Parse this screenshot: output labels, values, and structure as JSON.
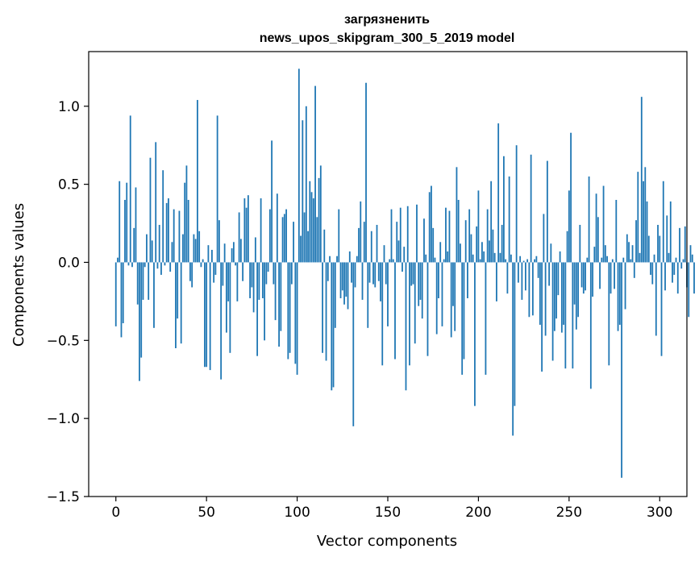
{
  "chart_data": {
    "type": "bar",
    "title": "загрязненить",
    "subtitle": "news_upos_skipgram_300_5_2019 model",
    "xlabel": "Vector components",
    "ylabel": "Components values",
    "xlim": [
      -15,
      315
    ],
    "ylim": [
      -1.5,
      1.35
    ],
    "xticks": [
      0,
      50,
      100,
      150,
      200,
      250,
      300
    ],
    "yticks": [
      1.0,
      0.5,
      0.0,
      -0.5,
      -1.0,
      -1.5
    ],
    "ytick_labels": [
      "1.0",
      "0.5",
      "0.0",
      "−0.5",
      "−1.0",
      "−1.5"
    ],
    "bar_color": "#1f77b4",
    "grid": false,
    "values": [
      -0.41,
      0.03,
      0.52,
      -0.48,
      -0.39,
      0.4,
      0.51,
      -0.02,
      0.94,
      -0.03,
      0.22,
      0.48,
      -0.27,
      -0.76,
      -0.61,
      -0.24,
      -0.03,
      0.18,
      -0.24,
      0.67,
      0.14,
      -0.42,
      0.77,
      -0.04,
      0.24,
      -0.08,
      0.59,
      -0.02,
      0.38,
      0.41,
      -0.06,
      0.13,
      0.34,
      -0.55,
      -0.36,
      0.33,
      -0.52,
      0.18,
      0.51,
      0.62,
      0.4,
      -0.12,
      -0.16,
      0.18,
      0.15,
      1.04,
      0.2,
      -0.03,
      0.02,
      -0.67,
      -0.67,
      0.11,
      -0.69,
      0.08,
      -0.13,
      -0.08,
      0.94,
      0.27,
      -0.75,
      -0.15,
      0.12,
      -0.45,
      -0.25,
      -0.58,
      0.09,
      0.13,
      -0.02,
      -0.25,
      0.32,
      0.15,
      -0.12,
      0.41,
      0.35,
      0.43,
      -0.23,
      -0.16,
      -0.32,
      0.16,
      -0.6,
      -0.24,
      0.41,
      -0.23,
      -0.5,
      -0.14,
      -0.06,
      0.34,
      0.78,
      -0.14,
      -0.37,
      0.44,
      -0.54,
      -0.44,
      0.29,
      0.31,
      0.34,
      -0.62,
      -0.58,
      -0.14,
      0.26,
      -0.65,
      -0.72,
      1.24,
      0.17,
      0.91,
      0.32,
      1.0,
      0.2,
      0.52,
      0.45,
      0.41,
      1.13,
      0.29,
      0.54,
      0.62,
      -0.58,
      0.21,
      -0.63,
      -0.12,
      0.04,
      -0.82,
      -0.8,
      -0.42,
      0.04,
      0.34,
      -0.23,
      -0.18,
      -0.27,
      -0.22,
      -0.3,
      0.07,
      -0.13,
      -1.05,
      -0.16,
      0.04,
      0.22,
      0.39,
      -0.24,
      0.26,
      1.15,
      -0.42,
      -0.13,
      0.2,
      -0.14,
      -0.16,
      0.24,
      -0.12,
      -0.25,
      -0.66,
      0.11,
      -0.14,
      -0.41,
      0.02,
      0.34,
      0.02,
      -0.62,
      0.26,
      0.14,
      0.35,
      -0.06,
      0.1,
      -0.82,
      0.36,
      -0.66,
      -0.15,
      -0.14,
      -0.52,
      0.37,
      -0.28,
      -0.24,
      -0.36,
      0.28,
      0.05,
      -0.6,
      0.45,
      0.49,
      0.22,
      0.03,
      -0.46,
      -0.23,
      0.13,
      -0.41,
      0.02,
      0.35,
      0.07,
      0.33,
      -0.48,
      -0.28,
      -0.44,
      0.61,
      0.4,
      0.12,
      -0.72,
      -0.62,
      0.27,
      -0.23,
      0.34,
      0.18,
      0.05,
      -0.92,
      0.23,
      0.46,
      0.02,
      0.13,
      0.07,
      -0.72,
      0.34,
      0.14,
      0.52,
      0.21,
      0.06,
      -0.25,
      0.89,
      0.06,
      0.24,
      0.68,
      0.02,
      -0.2,
      0.55,
      0.05,
      -1.11,
      -0.92,
      0.75,
      -0.13,
      0.04,
      -0.24,
      0.01,
      -0.18,
      0.02,
      -0.35,
      0.69,
      -0.34,
      0.02,
      0.04,
      -0.1,
      -0.4,
      -0.7,
      0.31,
      -0.47,
      0.65,
      -0.15,
      0.12,
      -0.63,
      -0.44,
      -0.36,
      -0.21,
      0.07,
      -0.45,
      -0.4,
      -0.68,
      0.2,
      0.46,
      0.83,
      -0.68,
      -0.27,
      -0.43,
      -0.35,
      0.24,
      -0.16,
      -0.2,
      -0.18,
      0.03,
      0.55,
      -0.81,
      -0.22,
      0.1,
      0.44,
      0.29,
      -0.17,
      0.03,
      0.49,
      0.11,
      0.04,
      -0.66,
      -0.2,
      0.02,
      -0.17,
      0.4,
      -0.44,
      -0.4,
      -1.38,
      0.03,
      -0.3,
      0.18,
      0.13,
      0.02,
      0.11,
      -0.1,
      0.27,
      0.58,
      0.06,
      1.06,
      0.52,
      0.61,
      0.39,
      0.17,
      -0.08,
      -0.14,
      0.05,
      -0.47,
      0.24,
      0.17,
      -0.6,
      0.52,
      -0.18,
      0.3,
      0.06,
      0.39,
      -0.13,
      -0.08,
      0.03,
      -0.2,
      0.22,
      -0.04,
      0.02,
      0.23,
      -0.16,
      -0.35,
      0.11,
      0.05,
      -0.2
    ]
  }
}
